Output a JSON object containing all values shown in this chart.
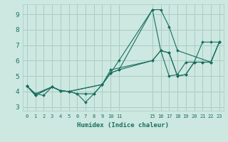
{
  "bg_color": "#cce8e0",
  "grid_color": "#aaccc4",
  "line_color": "#1a6e60",
  "xlabel": "Humidex (Indice chaleur)",
  "xlim": [
    -0.5,
    23.5
  ],
  "ylim": [
    2.75,
    9.65
  ],
  "yticks": [
    3,
    4,
    5,
    6,
    7,
    8,
    9
  ],
  "xtick_positions": [
    0,
    1,
    2,
    3,
    4,
    5,
    6,
    7,
    8,
    9,
    10,
    11,
    15,
    16,
    17,
    18,
    19,
    20,
    21,
    22,
    23
  ],
  "xtick_labels": [
    "0",
    "1",
    "2",
    "3",
    "4",
    "5",
    "6",
    "7",
    "8",
    "9",
    "10",
    "11",
    "15",
    "16",
    "17",
    "18",
    "19",
    "20",
    "21",
    "22",
    "23"
  ],
  "series": [
    {
      "x": [
        0,
        1,
        2,
        3,
        4,
        5,
        6,
        7,
        8,
        9,
        10,
        11,
        15,
        16,
        17,
        18,
        22,
        23
      ],
      "y": [
        4.35,
        3.85,
        3.75,
        4.3,
        4.05,
        4.0,
        3.85,
        3.3,
        3.85,
        4.45,
        5.2,
        6.0,
        9.3,
        9.3,
        8.2,
        6.65,
        5.9,
        7.2
      ]
    },
    {
      "x": [
        0,
        1,
        3,
        4,
        5,
        6,
        7,
        8,
        9,
        10,
        11,
        15,
        16,
        17,
        18,
        19,
        20,
        21,
        22,
        23
      ],
      "y": [
        4.35,
        3.85,
        4.3,
        4.05,
        4.0,
        3.85,
        3.85,
        3.85,
        4.45,
        5.2,
        5.4,
        9.3,
        6.65,
        5.0,
        5.1,
        5.9,
        5.9,
        7.2,
        7.2,
        7.2
      ]
    },
    {
      "x": [
        0,
        1,
        3,
        4,
        5,
        9,
        10,
        11,
        15,
        16,
        17,
        18,
        19,
        20,
        21,
        22,
        23
      ],
      "y": [
        4.35,
        3.75,
        4.3,
        4.05,
        4.0,
        4.45,
        5.2,
        5.4,
        6.0,
        6.65,
        6.5,
        5.0,
        5.1,
        5.9,
        5.9,
        5.9,
        7.2
      ]
    },
    {
      "x": [
        0,
        1,
        3,
        4,
        5,
        9,
        10,
        15,
        16,
        17,
        18,
        19,
        20,
        21,
        22,
        23
      ],
      "y": [
        4.35,
        3.75,
        4.3,
        4.05,
        4.0,
        4.45,
        5.4,
        6.0,
        6.65,
        6.5,
        5.0,
        5.1,
        5.9,
        5.9,
        5.9,
        7.2
      ]
    }
  ]
}
